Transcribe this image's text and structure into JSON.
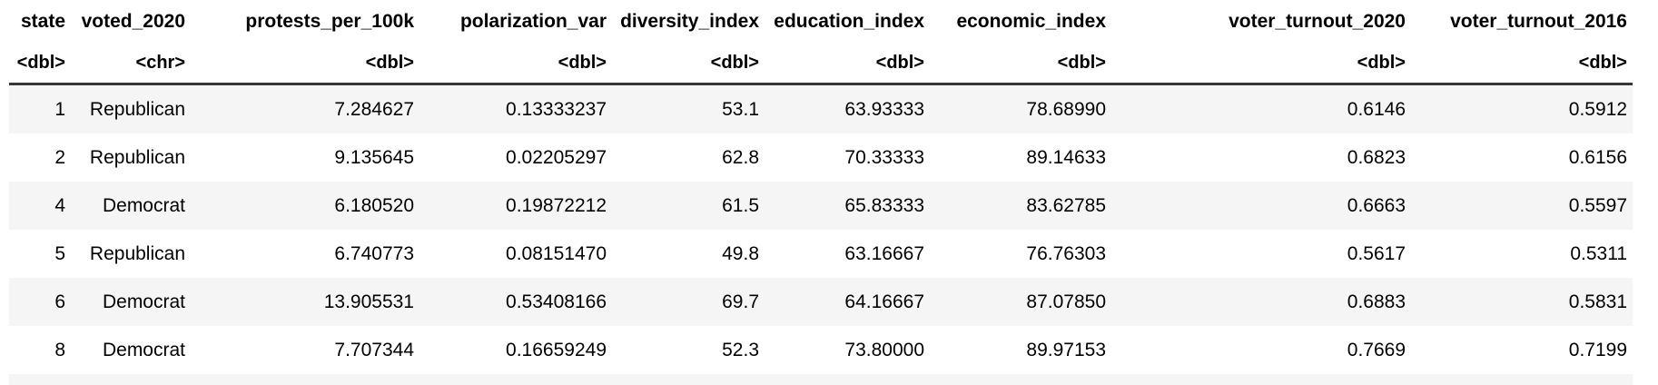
{
  "table": {
    "columns": [
      {
        "name": "state",
        "type": "<dbl>"
      },
      {
        "name": "voted_2020",
        "type": "<chr>"
      },
      {
        "name": "protests_per_100k",
        "type": "<dbl>"
      },
      {
        "name": "polarization_var",
        "type": "<dbl>"
      },
      {
        "name": "diversity_index",
        "type": "<dbl>"
      },
      {
        "name": "education_index",
        "type": "<dbl>"
      },
      {
        "name": "economic_index",
        "type": "<dbl>"
      },
      {
        "name": "voter_turnout_2020",
        "type": "<dbl>"
      },
      {
        "name": "voter_turnout_2016",
        "type": "<dbl>"
      }
    ],
    "rows": [
      [
        "1",
        "Republican",
        "7.284627",
        "0.13333237",
        "53.1",
        "63.93333",
        "78.68990",
        "0.6146",
        "0.5912"
      ],
      [
        "2",
        "Republican",
        "9.135645",
        "0.02205297",
        "62.8",
        "70.33333",
        "89.14633",
        "0.6823",
        "0.6156"
      ],
      [
        "4",
        "Democrat",
        "6.180520",
        "0.19872212",
        "61.5",
        "65.83333",
        "83.62785",
        "0.6663",
        "0.5597"
      ],
      [
        "5",
        "Republican",
        "6.740773",
        "0.08151470",
        "49.8",
        "63.16667",
        "76.76303",
        "0.5617",
        "0.5311"
      ],
      [
        "6",
        "Democrat",
        "13.905531",
        "0.53408166",
        "69.7",
        "64.16667",
        "87.07850",
        "0.6883",
        "0.5831"
      ],
      [
        "8",
        "Democrat",
        "7.707344",
        "0.16659249",
        "52.3",
        "73.80000",
        "89.97153",
        "0.7669",
        "0.7199"
      ]
    ],
    "colors": {
      "stripe": "#f5f5f5",
      "header_rule": "#363636",
      "text": "#000000",
      "background": "#ffffff"
    }
  }
}
